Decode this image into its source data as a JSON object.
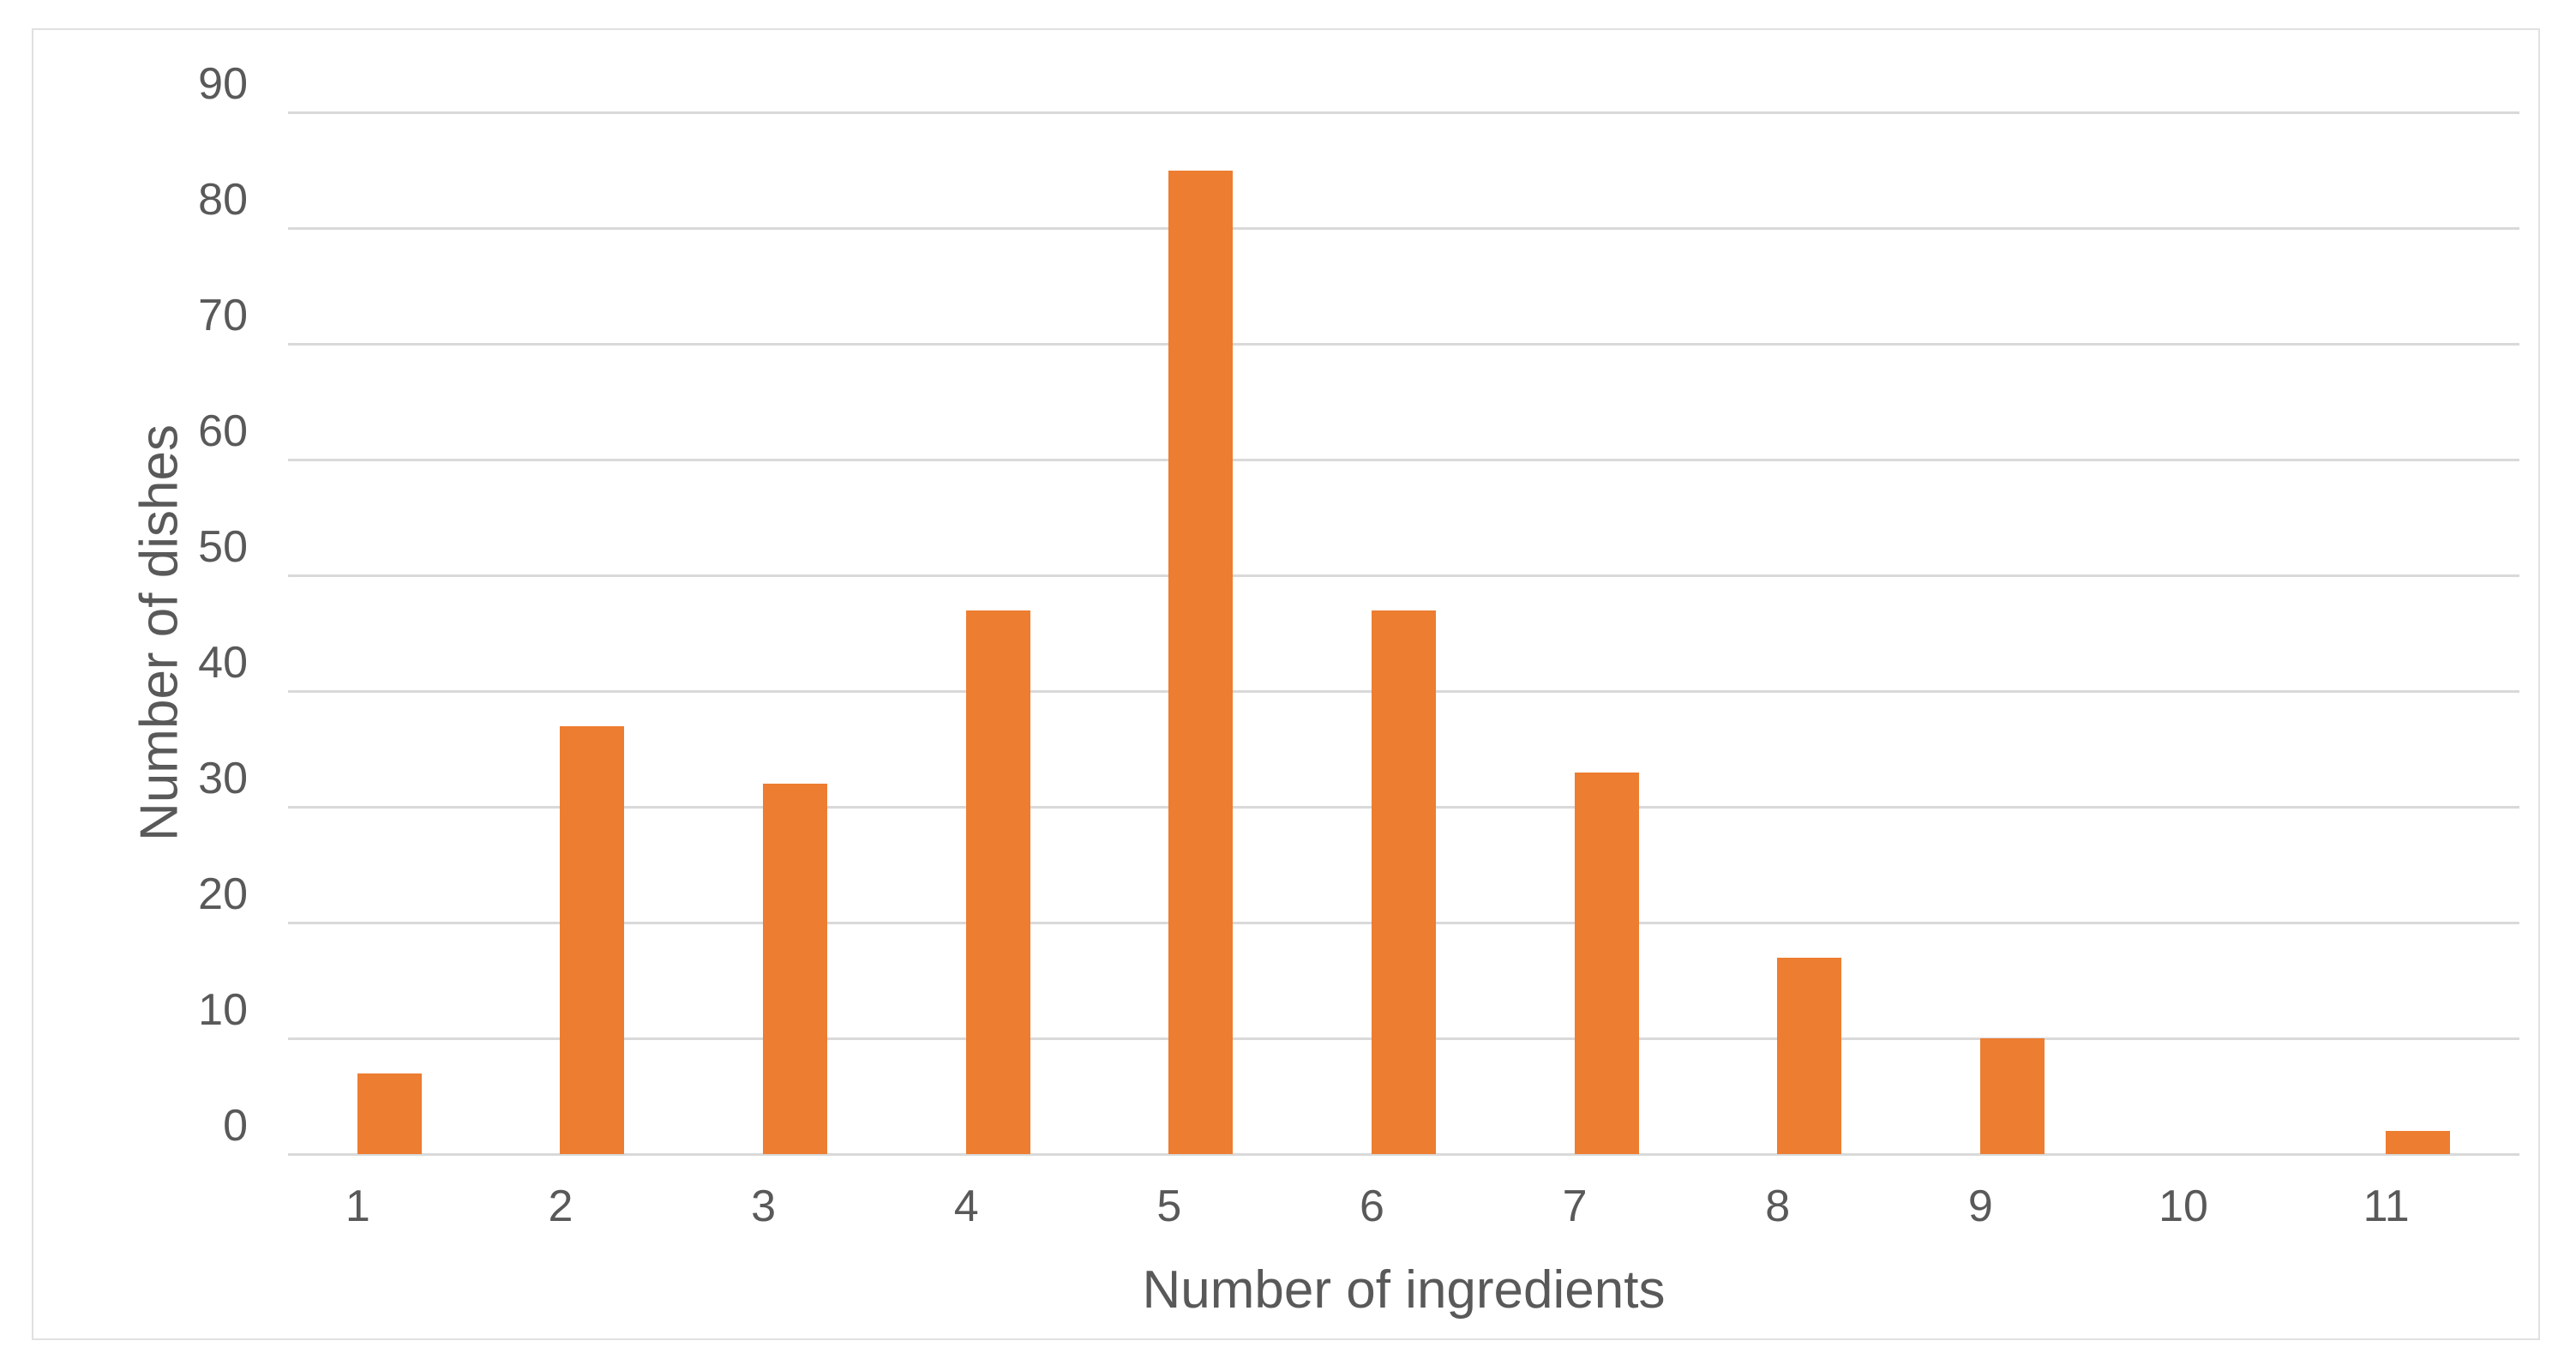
{
  "chart_data": {
    "type": "bar",
    "categories": [
      "1",
      "2",
      "3",
      "4",
      "5",
      "6",
      "7",
      "8",
      "9",
      "10",
      "11"
    ],
    "values": [
      7,
      37,
      32,
      47,
      85,
      47,
      33,
      17,
      10,
      0,
      2
    ],
    "xlabel": "Number of ingredients",
    "ylabel": "Number of dishes",
    "ylim": [
      0,
      90
    ],
    "yticks": [
      0,
      10,
      20,
      30,
      40,
      50,
      60,
      70,
      80,
      90
    ],
    "grid": true,
    "legend_visible": false,
    "colors": {
      "bar": "#ED7D31",
      "gridline": "#D9D9D9",
      "axis_text": "#595959",
      "frame_border": "#E1E1E1",
      "background": "#FFFFFF"
    }
  }
}
